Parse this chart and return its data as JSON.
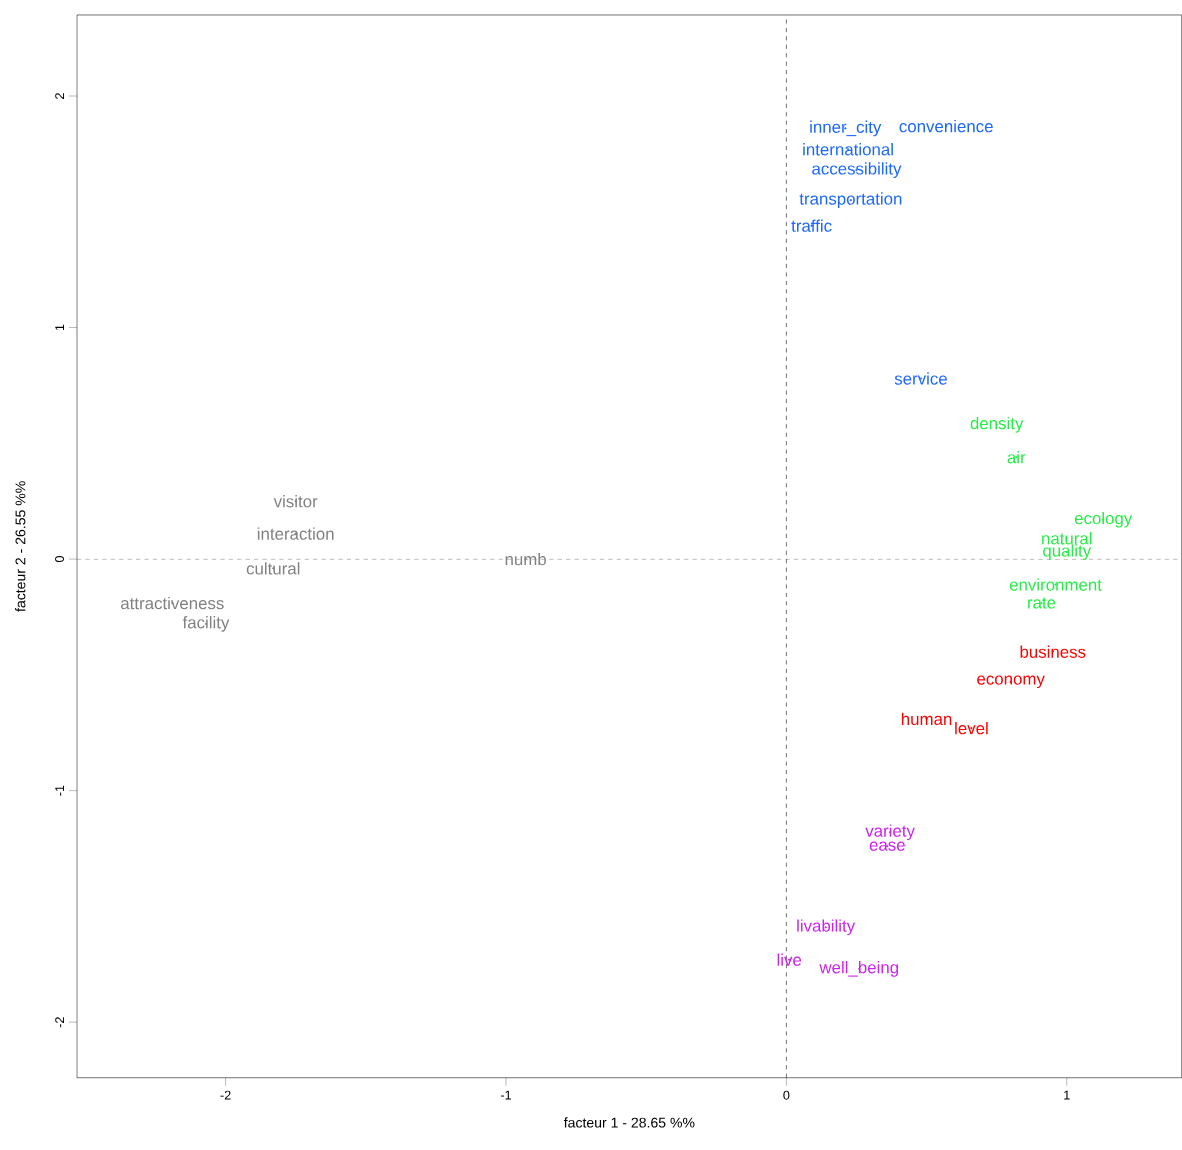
{
  "chart_data": {
    "type": "scatter",
    "xlabel": "facteur  1  - 28.65 %%",
    "ylabel": "facteur  2  - 26.55 %%",
    "xlim": [
      -2.53,
      1.41
    ],
    "ylim": [
      -2.24,
      2.35
    ],
    "xticks": [
      -2,
      -1,
      0,
      1
    ],
    "yticks": [
      -2,
      -1,
      0,
      1,
      2
    ],
    "grid": false,
    "ref_lines": [
      {
        "axis": "x",
        "value": 0,
        "line_style": "dashed",
        "color": "#000000"
      },
      {
        "axis": "y",
        "value": 0,
        "line_style": "dashed",
        "color": "#555555"
      }
    ],
    "series": [
      {
        "color": "#1a66ff",
        "x": [
          0.21,
          0.57,
          0.22,
          0.25,
          0.23,
          0.09,
          0.48
        ],
        "values": [
          1.86,
          1.87,
          1.77,
          1.68,
          1.55,
          1.44,
          0.78
        ],
        "value_labels": [
          "inner_city",
          "convenience",
          "international",
          "accessibility",
          "transportation",
          "traffic",
          "service"
        ]
      },
      {
        "color": "#22ee44",
        "x": [
          0.75,
          0.82,
          1.13,
          1.0,
          1.0,
          0.96,
          0.91
        ],
        "values": [
          0.58,
          0.44,
          0.17,
          0.09,
          0.03,
          -0.11,
          -0.19
        ],
        "value_labels": [
          "density",
          "air",
          "ecology",
          "natural",
          "quality",
          "environment",
          "rate"
        ]
      },
      {
        "color": "#ff0000",
        "x": [
          0.95,
          0.8,
          0.5,
          0.66
        ],
        "values": [
          -0.4,
          -0.53,
          -0.69,
          -0.73
        ],
        "value_labels": [
          "business",
          "economy",
          "human",
          "level"
        ]
      },
      {
        "color": "#cc22ee",
        "x": [
          0.37,
          0.36,
          0.14,
          0.01,
          0.26
        ],
        "values": [
          -1.18,
          -1.24,
          -1.59,
          -1.73,
          -1.77
        ],
        "value_labels": [
          "variety",
          "ease",
          "livability",
          "live",
          "well_being"
        ]
      },
      {
        "color": "#808080",
        "x": [
          -1.75,
          -1.75,
          -1.83,
          -2.19,
          -2.07,
          -0.93
        ],
        "values": [
          0.25,
          0.11,
          -0.04,
          -0.19,
          -0.28,
          0.0
        ],
        "value_labels": [
          "visitor",
          "interaction",
          "cultural",
          "attractiveness",
          "facility",
          "numb"
        ]
      }
    ]
  }
}
